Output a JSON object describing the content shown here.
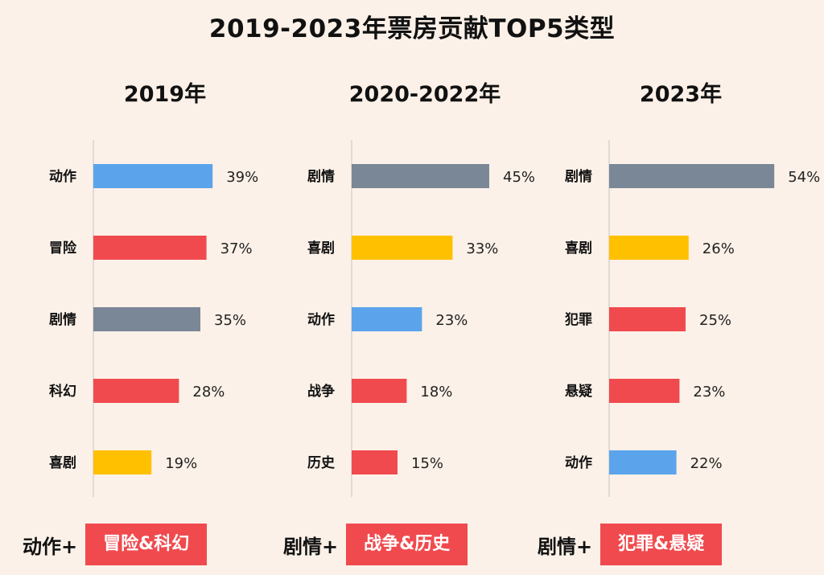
{
  "title": "2019-2023年票房贡献TOP5类型",
  "colors": {
    "background": "#FBF1E8",
    "动作": "#5BA4EC",
    "冒险": "#F04A4E",
    "剧情": "#7A8797",
    "科幻": "#F04A4E",
    "喜剧": "#FFC000",
    "战争": "#F04A4E",
    "历史": "#F04A4E",
    "犯罪": "#F04A4E",
    "悬疑": "#F04A4E",
    "tag": "#F04A4E"
  },
  "chart_data": [
    {
      "type": "bar",
      "orientation": "horizontal",
      "title": "2019年",
      "categories": [
        "动作",
        "冒险",
        "剧情",
        "科幻",
        "喜剧"
      ],
      "values": [
        39,
        37,
        35,
        28,
        19
      ],
      "value_labels": [
        "39%",
        "37%",
        "35%",
        "28%",
        "19%"
      ],
      "unit": "%"
    },
    {
      "type": "bar",
      "orientation": "horizontal",
      "title": "2020-2022年",
      "categories": [
        "剧情",
        "喜剧",
        "动作",
        "战争",
        "历史"
      ],
      "values": [
        45,
        33,
        23,
        18,
        15
      ],
      "value_labels": [
        "45%",
        "33%",
        "23%",
        "18%",
        "15%"
      ],
      "unit": "%"
    },
    {
      "type": "bar",
      "orientation": "horizontal",
      "title": "2023年",
      "categories": [
        "剧情",
        "喜剧",
        "犯罪",
        "悬疑",
        "动作"
      ],
      "values": [
        54,
        26,
        25,
        23,
        22
      ],
      "value_labels": [
        "54%",
        "26%",
        "25%",
        "23%",
        "22%"
      ],
      "unit": "%"
    }
  ],
  "summaries": [
    {
      "lead": "动作+",
      "tag": "冒险&科幻"
    },
    {
      "lead": "剧情+",
      "tag": "战争&历史"
    },
    {
      "lead": "剧情+",
      "tag": "犯罪&悬疑"
    }
  ]
}
